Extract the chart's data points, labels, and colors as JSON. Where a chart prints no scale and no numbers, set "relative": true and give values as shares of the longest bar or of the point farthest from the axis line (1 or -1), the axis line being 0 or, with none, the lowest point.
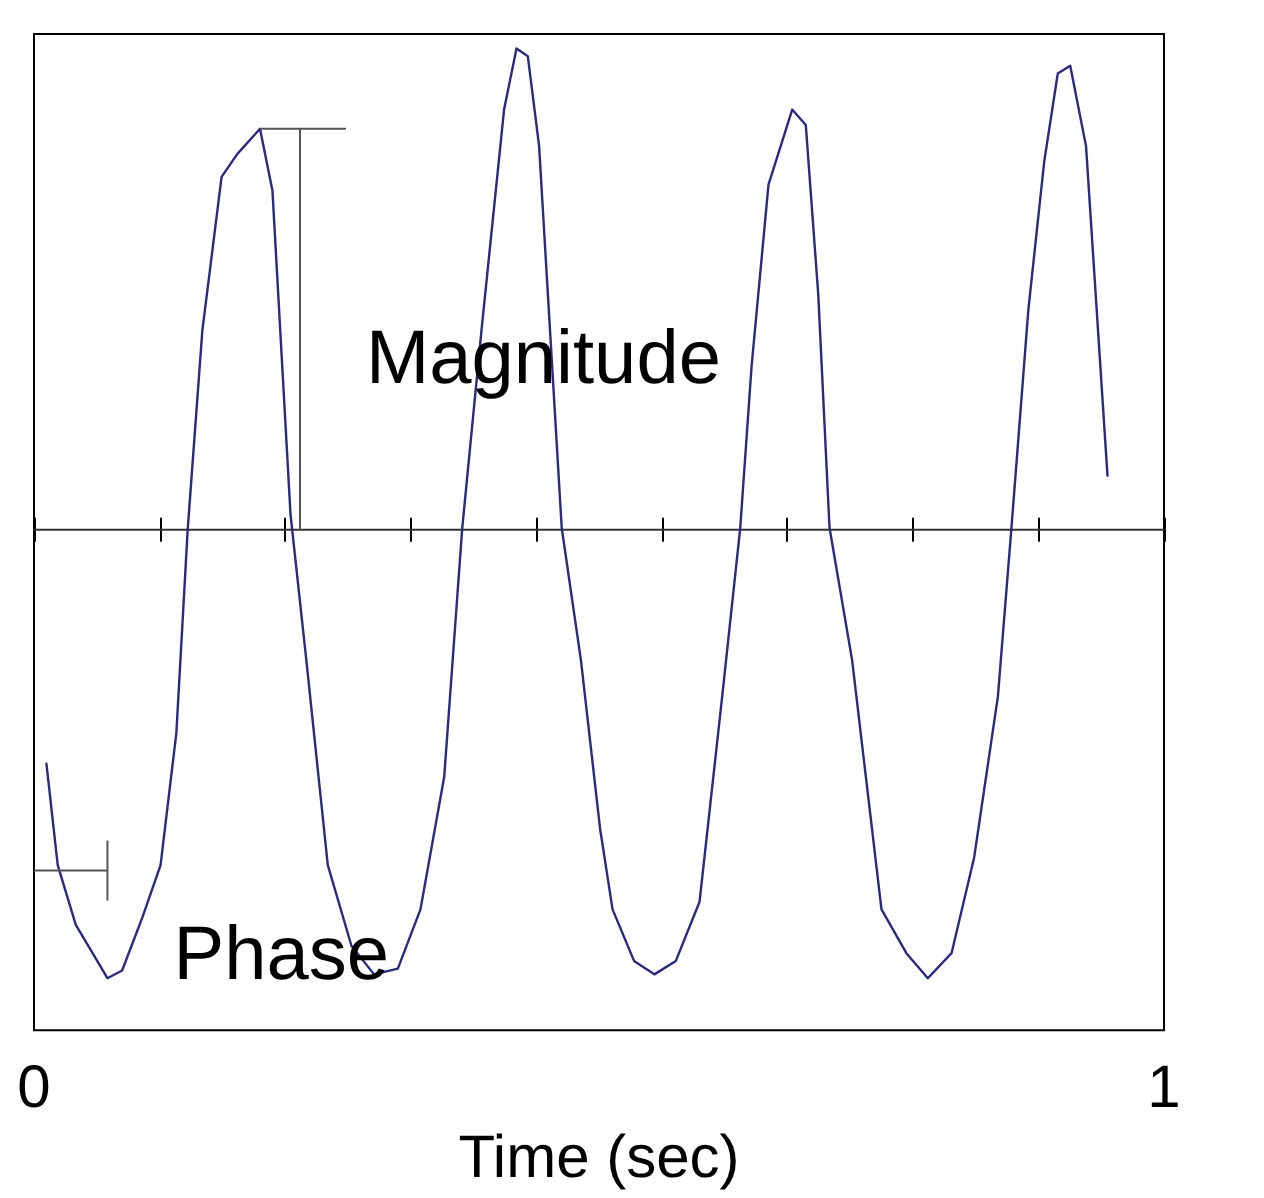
{
  "chart_data": {
    "type": "line",
    "relative": true,
    "xlabel": "Time (sec)",
    "xlim": [
      0,
      1
    ],
    "xticks": [
      0,
      {
        "value": 0.1111,
        "label": null
      },
      {
        "value": 0.2222,
        "label": null
      },
      {
        "value": 0.3333,
        "label": null
      },
      {
        "value": 0.4444,
        "label": null
      },
      {
        "value": 0.5556,
        "label": null
      },
      {
        "value": 0.6667,
        "label": null
      },
      {
        "value": 0.7778,
        "label": null
      },
      {
        "value": 0.8889,
        "label": null
      },
      1
    ],
    "tick_labels": "x",
    "marker": "none",
    "line_style": "solid",
    "ref_lines": [
      {
        "axis": "y",
        "value": 0,
        "color": "#333333"
      }
    ],
    "annotations": [
      "Magnitude",
      "Phase"
    ],
    "series": [
      {
        "color": "#2a2a80",
        "x": [
          0.011,
          0.021,
          0.037,
          0.065,
          0.078,
          0.096,
          0.112,
          0.126,
          0.136,
          0.149,
          0.166,
          0.18,
          0.2,
          0.211,
          0.227,
          0.241,
          0.26,
          0.281,
          0.301,
          0.322,
          0.342,
          0.363,
          0.379,
          0.396,
          0.416,
          0.427,
          0.437,
          0.447,
          0.467,
          0.484,
          0.501,
          0.512,
          0.531,
          0.549,
          0.568,
          0.589,
          0.609,
          0.625,
          0.635,
          0.65,
          0.671,
          0.683,
          0.694,
          0.704,
          0.724,
          0.75,
          0.772,
          0.791,
          0.812,
          0.832,
          0.853,
          0.865,
          0.88,
          0.894,
          0.906,
          0.917,
          0.931,
          0.95
        ],
        "values": [
          -0.486,
          -0.697,
          -0.821,
          -0.932,
          -0.916,
          -0.805,
          -0.697,
          -0.422,
          0,
          0.414,
          0.733,
          0.781,
          0.833,
          0.705,
          0.032,
          -0.271,
          -0.697,
          -0.865,
          -0.924,
          -0.912,
          -0.789,
          -0.514,
          0.004,
          0.414,
          0.873,
          1,
          0.984,
          0.797,
          0.004,
          -0.271,
          -0.622,
          -0.789,
          -0.896,
          -0.924,
          -0.896,
          -0.773,
          -0.347,
          0.004,
          0.339,
          0.717,
          0.873,
          0.841,
          0.49,
          0.004,
          -0.271,
          -0.789,
          -0.88,
          -0.932,
          -0.88,
          -0.681,
          -0.347,
          0.004,
          0.458,
          0.765,
          0.948,
          0.964,
          0.797,
          0.112
        ]
      }
    ]
  }
}
